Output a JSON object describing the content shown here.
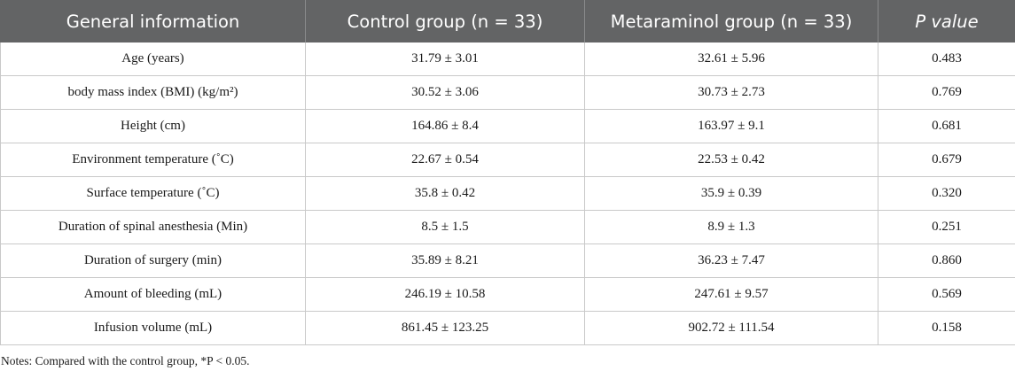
{
  "table": {
    "headers": [
      "General information",
      "Control group (n = 33)",
      "Metaraminol group (n = 33)",
      "P value"
    ],
    "rows": [
      {
        "label": "Age (years)",
        "control": "31.79 ± 3.01",
        "metaraminol": "32.61 ± 5.96",
        "p": "0.483"
      },
      {
        "label": "body mass index (BMI) (kg/m²)",
        "control": "30.52 ± 3.06",
        "metaraminol": "30.73 ± 2.73",
        "p": "0.769"
      },
      {
        "label": "Height (cm)",
        "control": "164.86 ± 8.4",
        "metaraminol": "163.97 ± 9.1",
        "p": "0.681"
      },
      {
        "label": "Environment temperature (˚C)",
        "control": "22.67 ± 0.54",
        "metaraminol": "22.53 ± 0.42",
        "p": "0.679"
      },
      {
        "label": "Surface temperature (˚C)",
        "control": "35.8 ± 0.42",
        "metaraminol": "35.9 ± 0.39",
        "p": "0.320"
      },
      {
        "label": "Duration of spinal anesthesia (Min)",
        "control": "8.5 ± 1.5",
        "metaraminol": "8.9 ± 1.3",
        "p": "0.251"
      },
      {
        "label": "Duration of surgery (min)",
        "control": "35.89 ± 8.21",
        "metaraminol": "36.23 ± 7.47",
        "p": "0.860"
      },
      {
        "label": "Amount of bleeding (mL)",
        "control": "246.19 ± 10.58",
        "metaraminol": "247.61 ± 9.57",
        "p": "0.569"
      },
      {
        "label": "Infusion volume (mL)",
        "control": "861.45 ± 123.25",
        "metaraminol": "902.72 ± 111.54",
        "p": "0.158"
      }
    ]
  },
  "notes": "Notes: Compared with the control group, *P < 0.05.",
  "colors": {
    "header_bg": "#636465",
    "header_text": "#ffffff",
    "grid": "#c9c9c9"
  }
}
